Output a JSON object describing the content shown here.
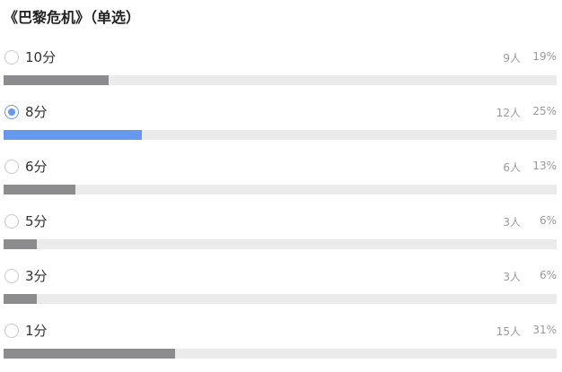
{
  "title": "《巴黎危机》（单选）",
  "options": [
    {
      "label": "10分",
      "count": "9人",
      "percent": {
        "value": 19,
        "label": "19%"
      },
      "selected": false
    },
    {
      "label": "8分",
      "count": "12人",
      "percent": {
        "value": 25,
        "label": "25%"
      },
      "selected": true
    },
    {
      "label": "6分",
      "count": "6人",
      "percent": {
        "value": 13,
        "label": "13%"
      },
      "selected": false
    },
    {
      "label": "5分",
      "count": "3人",
      "percent": {
        "value": 6,
        "label": "6%"
      },
      "selected": false
    },
    {
      "label": "3分",
      "count": "3人",
      "percent": {
        "value": 6,
        "label": "6%"
      },
      "selected": false
    },
    {
      "label": "1分",
      "count": "15人",
      "percent": {
        "value": 31,
        "label": "31%"
      },
      "selected": false
    }
  ]
}
